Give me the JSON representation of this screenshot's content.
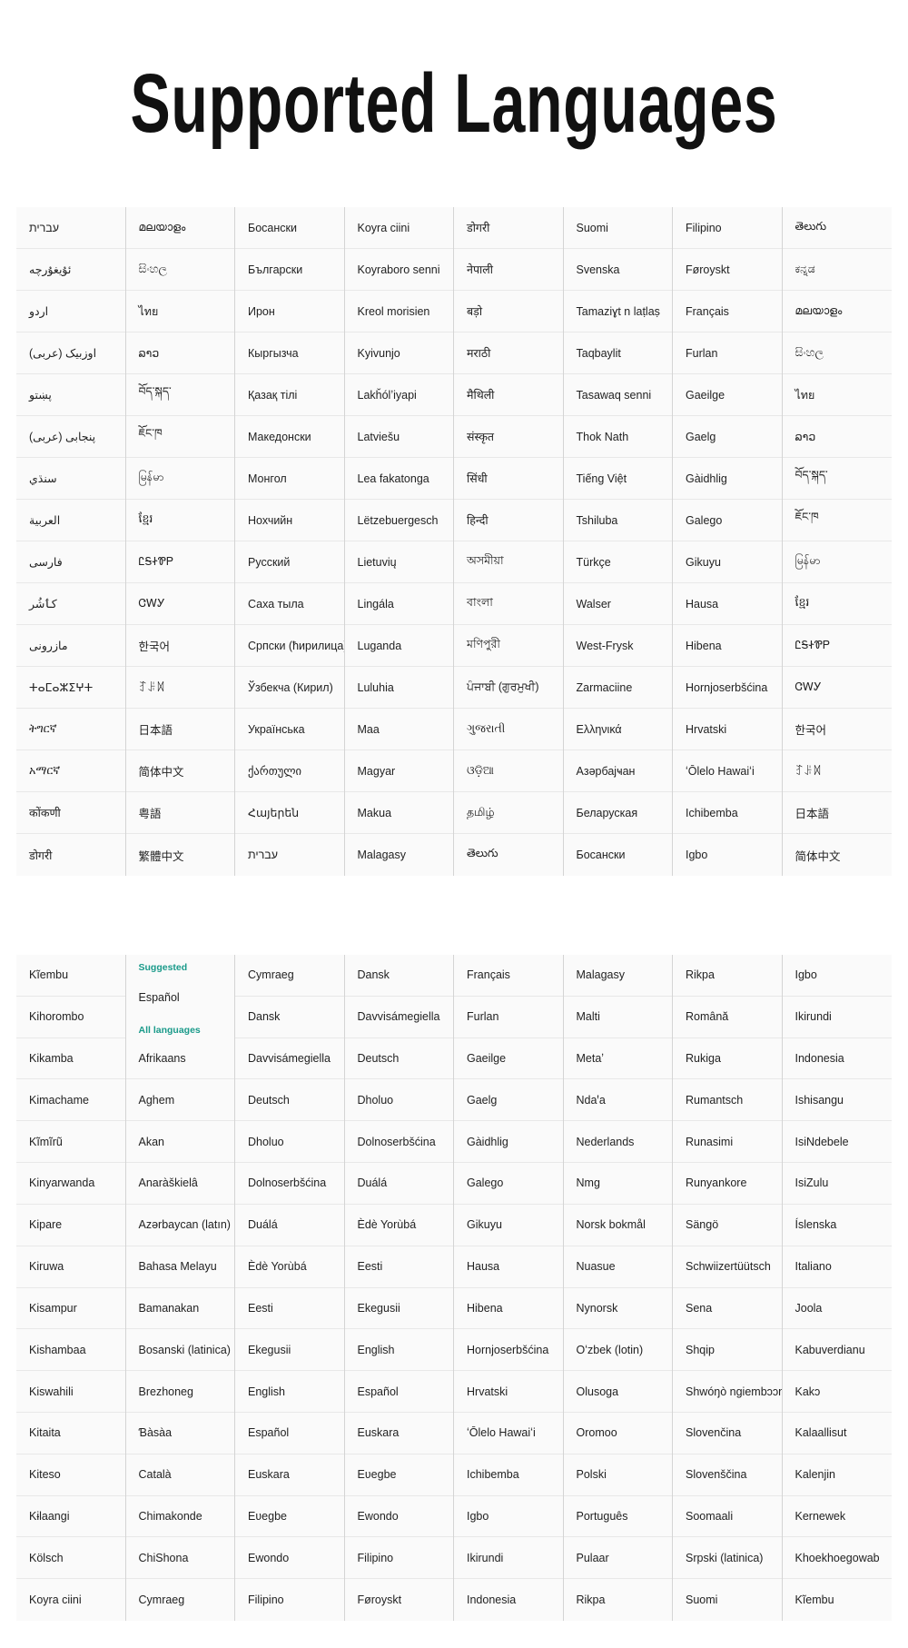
{
  "title": "Supported Languages",
  "panel1": {
    "columns": [
      [
        "עברית",
        "ئۇيغۇرچە",
        "اردو",
        "اوزبیک (عربی)",
        "پښتو",
        "پنجابی (عربی)",
        "سنڌي",
        "العربية",
        "فارسی",
        "کٲشُر",
        "مازرونی",
        "ⵜⴰⵎⴰⵣⵉⵖⵜ",
        "ትግርኛ",
        "አማርኛ",
        "कोंकणी",
        "डोगरी"
      ],
      [
        "മലയാളം",
        "සිංහල",
        "ไทย",
        "ລາວ",
        "བོད་སྐད་",
        "ཇོང་ཁ",
        "မြန်မာ",
        "ខ្មែរ",
        "ᏝᎦᏐᏈᏢ",
        "ᏣᎳᎩ",
        "한국어",
        "ꆈꌠꉙ",
        "日本語",
        "简体中文",
        "粤語",
        "繁體中文"
      ],
      [
        "Босански",
        "Български",
        "Ирон",
        "Кыргызча",
        "Қазақ тілі",
        "Македонски",
        "Монгол",
        "Нохчийн",
        "Русский",
        "Саха тыла",
        "Српски (ћирилица)",
        "Ўзбекча (Кирил)",
        "Українська",
        "ქართული",
        "Հայերեն",
        "עברית"
      ],
      [
        "Koyra ciini",
        "Koyraboro senni",
        "Kreol morisien",
        "Kyivunjo",
        "Lakȟólʼiyapi",
        "Latviešu",
        "Lea fakatonga",
        "Lëtzebuergesch",
        "Lietuvių",
        "Lingála",
        "Luganda",
        "Luluhia",
        "Maa",
        "Magyar",
        "Makua",
        "Malagasy"
      ],
      [
        "डोगरी",
        "नेपाली",
        "बड़ो",
        "मराठी",
        "मैथिली",
        "संस्कृत",
        "सिंधी",
        "हिन्दी",
        "অসমীয়া",
        "বাংলা",
        "মণিপুরী",
        "ਪੰਜਾਬੀ (ਗੁਰਮੁਖੀ)",
        "ગુજરાતી",
        "ଓଡ଼ିଆ",
        "தமிழ்",
        "తెలుగు"
      ],
      [
        "Suomi",
        "Svenska",
        "Tamaziɣt n laṭlaṣ",
        "Taqbaylit",
        "Tasawaq senni",
        "Thok Nath",
        "Tiếng Việt",
        "Tshiluba",
        "Türkçe",
        "Walser",
        "West-Frysk",
        "Zarmaciine",
        "Ελληνικά",
        "Азәрбајҹан",
        "Беларуская",
        "Босански"
      ],
      [
        "Filipino",
        "Føroyskt",
        "Français",
        "Furlan",
        "Gaeilge",
        "Gaelg",
        "Gàidhlig",
        "Galego",
        "Gikuyu",
        "Hausa",
        "Hibena",
        "Hornjoserbšćina",
        "Hrvatski",
        "ʻŌlelo Hawaiʻi",
        "Ichibemba",
        "Igbo"
      ],
      [
        "తెలుగు",
        "ಕನ್ನಡ",
        "മലയാളം",
        "සිංහල",
        "ไทย",
        "ລາວ",
        "བོད་སྐད་",
        "ཇོང་ཁ",
        "မြန်မာ",
        "ខ្មែរ",
        "ᏝᎦᏐᏈᏢ",
        "ᏣᎳᎩ",
        "한국어",
        "ꆈꌠꉙ",
        "日本語",
        "简体中文"
      ]
    ]
  },
  "panel2": {
    "suggested_label": "Suggested",
    "suggested": [
      "Español"
    ],
    "all_label": "All languages",
    "columns": [
      [
        "Kĩembu",
        "Kihorombo",
        "Kikamba",
        "Kimachame",
        "Kĩmĩrũ",
        "Kinyarwanda",
        "Kipare",
        "Kiruwa",
        "Kisampur",
        "Kishambaa",
        "Kiswahili",
        "Kitaita",
        "Kiteso",
        "Kɨlaangi",
        "Kölsch",
        "Koyra ciini"
      ],
      [
        "Afrikaans",
        "Aghem",
        "Akan",
        "Anaràškielâ",
        "Azərbaycan (latın)",
        "Bahasa Melayu",
        "Bamanakan",
        "Bosanski (latinica)",
        "Brezhoneg",
        "Ɓàsàa",
        "Català",
        "Chimakonde",
        "ChiShona",
        "Cymraeg"
      ],
      [
        "Cymraeg",
        "Dansk",
        "Davvisámegiella",
        "Deutsch",
        "Dholuo",
        "Dolnoserbšćina",
        "Duálá",
        "Èdè Yorùbá",
        "Eesti",
        "Ekegusii",
        "English",
        "Español",
        "Euskara",
        "Eʋegbe",
        "Ewondo",
        "Filipino"
      ],
      [
        "Dansk",
        "Davvisámegiella",
        "Deutsch",
        "Dholuo",
        "Dolnoserbšćina",
        "Duálá",
        "Èdè Yorùbá",
        "Eesti",
        "Ekegusii",
        "English",
        "Español",
        "Euskara",
        "Eʋegbe",
        "Ewondo",
        "Filipino",
        "Føroyskt"
      ],
      [
        "Français",
        "Furlan",
        "Gaeilge",
        "Gaelg",
        "Gàidhlig",
        "Galego",
        "Gikuyu",
        "Hausa",
        "Hibena",
        "Hornjoserbšćina",
        "Hrvatski",
        "ʻŌlelo Hawaiʻi",
        "Ichibemba",
        "Igbo",
        "Ikirundi",
        "Indonesia"
      ],
      [
        "Malagasy",
        "Malti",
        "Metaʼ",
        "Ndaꞌa",
        "Nederlands",
        "Nmg",
        "Norsk bokmål",
        "Nuasue",
        "Nynorsk",
        "Oʻzbek (lotin)",
        "Olusoga",
        "Oromoo",
        "Polski",
        "Português",
        "Pulaar",
        "Rikpa"
      ],
      [
        "Rikpa",
        "Română",
        "Rukiga",
        "Rumantsch",
        "Runasimi",
        "Runyankore",
        "Sängö",
        "Schwiizertüütsch",
        "Sena",
        "Shqip",
        "Shwóŋò ngiembɔɔn",
        "Slovenčina",
        "Slovenščina",
        "Soomaali",
        "Srpski (latinica)",
        "Suomi"
      ],
      [
        "Igbo",
        "Ikirundi",
        "Indonesia",
        "Ishisangu",
        "IsiNdebele",
        "IsiZulu",
        "Íslenska",
        "Italiano",
        "Joola",
        "Kabuverdianu",
        "Kakɔ",
        "Kalaallisut",
        "Kalenjin",
        "Kernewek",
        "Khoekhoegowab",
        "Kĩembu"
      ]
    ]
  }
}
